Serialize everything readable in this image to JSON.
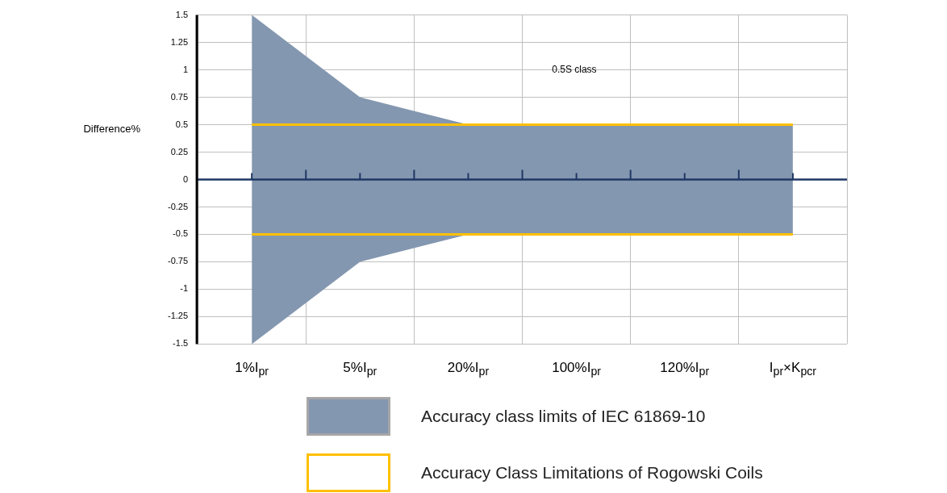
{
  "chart_data": {
    "type": "area",
    "ylabel": "Difference%",
    "categories": [
      "1%I$_{pr}$",
      "5%I$_{pr}$",
      "20%I$_{pr}$",
      "100%I$_{pr}$",
      "120%I$_{pr}$",
      "I$_{pr}$×K$_{pcr}$"
    ],
    "series": [
      {
        "type": "area",
        "name": "Accuracy class limits of IEC 61869-10",
        "color": "#8497b0",
        "values": [
          1.5,
          0.75,
          0.5,
          0.5,
          0.5,
          0.5
        ]
      },
      {
        "type": "area",
        "color": "#8497b0",
        "values": [
          -1.5,
          -0.75,
          -0.5,
          -0.5,
          -0.5,
          -0.5
        ]
      },
      {
        "type": "line",
        "name": "Accuracy Class Limitations of Rogowski Coils",
        "color": "#ffc000",
        "values": [
          0.5,
          0.5,
          0.5,
          0.5,
          0.5,
          0.5
        ]
      },
      {
        "type": "line",
        "color": "#ffc000",
        "values": [
          -0.5,
          -0.5,
          -0.5,
          -0.5,
          -0.5,
          -0.5
        ]
      }
    ],
    "ylim": [
      -1.5,
      1.5
    ],
    "yticks": [
      -1.5,
      -1.25,
      -1,
      -0.75,
      -0.5,
      -0.25,
      0,
      0.25,
      0.5,
      0.75,
      1,
      1.25,
      1.5
    ],
    "ref_lines": [
      {
        "axis": "y",
        "value": 0,
        "color": "#1f3864"
      }
    ],
    "annotations": [
      "0.5S class"
    ],
    "grid": true,
    "legend": "bottom"
  }
}
